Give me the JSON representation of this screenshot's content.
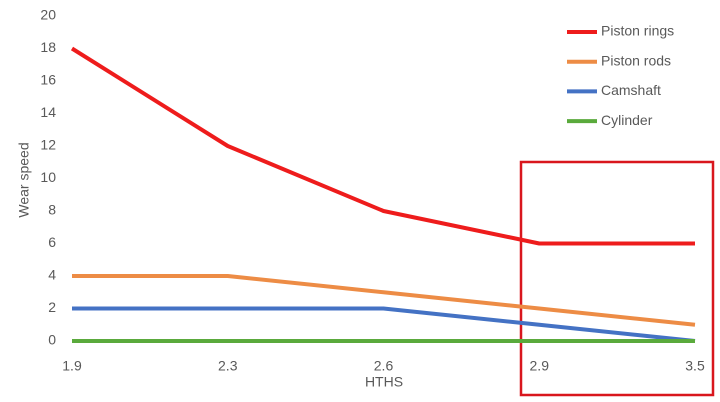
{
  "chart_data": {
    "type": "line",
    "x_label": "HTHS",
    "y_label": "Wear speed",
    "categories": [
      "1.9",
      "2.3",
      "2.6",
      "2.9",
      "3.5"
    ],
    "series": [
      {
        "name": "Piston rings",
        "color": "#ee1c1c",
        "values": [
          18,
          12,
          8,
          6,
          6
        ]
      },
      {
        "name": "Piston rods",
        "color": "#ed8c45",
        "values": [
          4,
          4,
          3,
          2,
          1
        ]
      },
      {
        "name": "Camshaft",
        "color": "#4472c4",
        "values": [
          2,
          2,
          2,
          1,
          0
        ]
      },
      {
        "name": "Cylinder",
        "color": "#5aaa3c",
        "values": [
          0,
          0,
          0,
          0,
          0
        ]
      }
    ],
    "ylim": [
      0,
      20
    ],
    "yticks": [
      0,
      2,
      4,
      6,
      8,
      10,
      12,
      14,
      16,
      18,
      20
    ],
    "grid": false,
    "legend": "upper right"
  }
}
